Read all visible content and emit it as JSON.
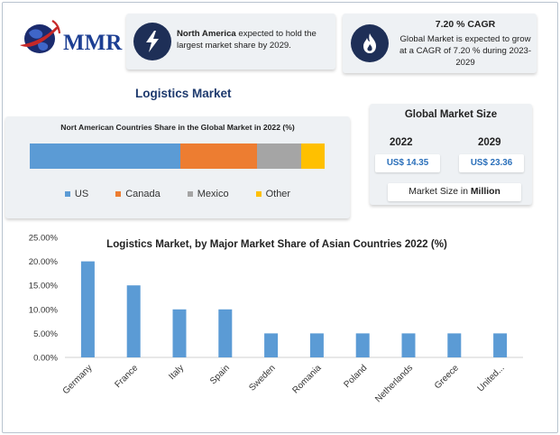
{
  "logo": {
    "text": "MMR"
  },
  "north_america_card": {
    "icon": "lightning-bolt-icon",
    "highlight": "North America",
    "text": " expected to hold the largest market share by 2029."
  },
  "cagr_card": {
    "icon": "flame-icon",
    "title": "7.20 % CAGR",
    "text": "Global Market is expected to grow at a CAGR of 7.20 % during 2023-2029"
  },
  "section_title": "Logistics Market",
  "na_chart": {
    "title": "Nort American Countries Share in the Global Market in 2022 (%)",
    "segments": [
      {
        "name": "US",
        "share": 51,
        "color": "#5b9bd5"
      },
      {
        "name": "Canada",
        "share": 26,
        "color": "#ed7d31"
      },
      {
        "name": "Mexico",
        "share": 15,
        "color": "#a5a5a5"
      },
      {
        "name": "Other",
        "share": 8,
        "color": "#ffc000"
      }
    ]
  },
  "global_market_size": {
    "title": "Global Market Size",
    "year_1": "2022",
    "year_2": "2029",
    "value_1": "US$ 14.35",
    "value_2": "US$ 23.36",
    "unit_prefix": "Market Size in ",
    "unit_bold": "Million"
  },
  "chart_data": {
    "type": "bar",
    "title": "Logistics Market, by Major Market Share of Asian Countries 2022 (%)",
    "categories": [
      "Germany",
      "France",
      "Italy",
      "Spain",
      "Sweden",
      "Romania",
      "Poland",
      "Netherlands",
      "Greece",
      "United..."
    ],
    "values": [
      20,
      15,
      10,
      10,
      5,
      5,
      5,
      5,
      5,
      5
    ],
    "ylim": [
      0,
      25
    ],
    "yticks": [
      "0.00%",
      "5.00%",
      "10.00%",
      "15.00%",
      "20.00%",
      "25.00%"
    ],
    "bar_color": "#5b9bd5",
    "grid": false,
    "xlabel": "",
    "ylabel": ""
  }
}
